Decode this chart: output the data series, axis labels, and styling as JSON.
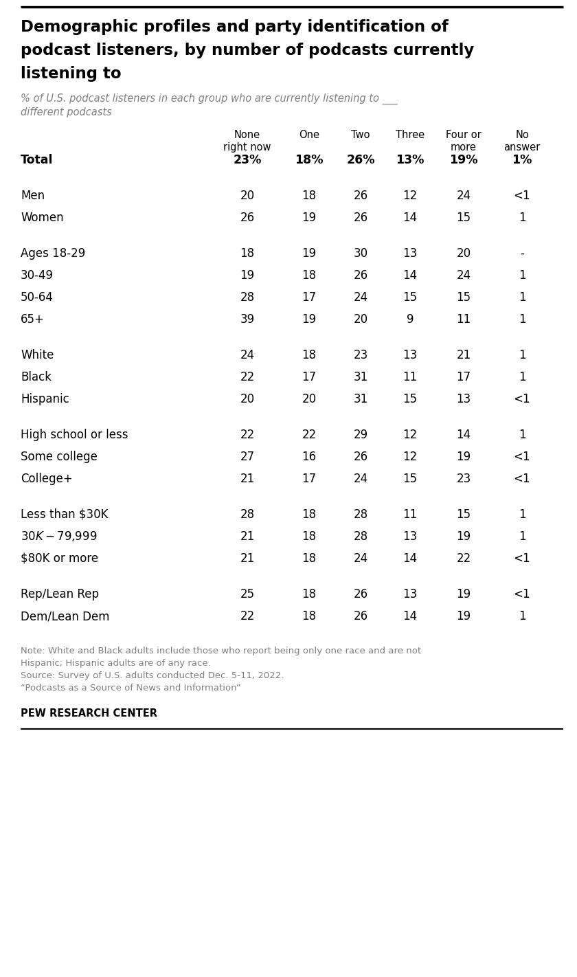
{
  "title_line1": "Demographic profiles and party identification of",
  "title_line2": "podcast listeners, by number of podcasts currently",
  "title_line3": "listening to",
  "subtitle_line1": "% of U.S. podcast listeners in each group who are currently listening to ___",
  "subtitle_line2": "different podcasts",
  "col_headers": [
    "None\nright now",
    "One",
    "Two",
    "Three",
    "Four or\nmore",
    "No\nanswer"
  ],
  "rows": [
    {
      "label": "Total",
      "values": [
        "23%",
        "18%",
        "26%",
        "13%",
        "19%",
        "1%"
      ],
      "bold": true,
      "spacer": false
    },
    {
      "label": "",
      "values": [
        "",
        "",
        "",
        "",
        "",
        ""
      ],
      "bold": false,
      "spacer": true
    },
    {
      "label": "Men",
      "values": [
        "20",
        "18",
        "26",
        "12",
        "24",
        "<1"
      ],
      "bold": false,
      "spacer": false
    },
    {
      "label": "Women",
      "values": [
        "26",
        "19",
        "26",
        "14",
        "15",
        "1"
      ],
      "bold": false,
      "spacer": false
    },
    {
      "label": "",
      "values": [
        "",
        "",
        "",
        "",
        "",
        ""
      ],
      "bold": false,
      "spacer": true
    },
    {
      "label": "Ages 18-29",
      "values": [
        "18",
        "19",
        "30",
        "13",
        "20",
        "-"
      ],
      "bold": false,
      "spacer": false
    },
    {
      "label": "30-49",
      "values": [
        "19",
        "18",
        "26",
        "14",
        "24",
        "1"
      ],
      "bold": false,
      "spacer": false
    },
    {
      "label": "50-64",
      "values": [
        "28",
        "17",
        "24",
        "15",
        "15",
        "1"
      ],
      "bold": false,
      "spacer": false
    },
    {
      "label": "65+",
      "values": [
        "39",
        "19",
        "20",
        "9",
        "11",
        "1"
      ],
      "bold": false,
      "spacer": false
    },
    {
      "label": "",
      "values": [
        "",
        "",
        "",
        "",
        "",
        ""
      ],
      "bold": false,
      "spacer": true
    },
    {
      "label": "White",
      "values": [
        "24",
        "18",
        "23",
        "13",
        "21",
        "1"
      ],
      "bold": false,
      "spacer": false
    },
    {
      "label": "Black",
      "values": [
        "22",
        "17",
        "31",
        "11",
        "17",
        "1"
      ],
      "bold": false,
      "spacer": false
    },
    {
      "label": "Hispanic",
      "values": [
        "20",
        "20",
        "31",
        "15",
        "13",
        "<1"
      ],
      "bold": false,
      "spacer": false
    },
    {
      "label": "",
      "values": [
        "",
        "",
        "",
        "",
        "",
        ""
      ],
      "bold": false,
      "spacer": true
    },
    {
      "label": "High school or less",
      "values": [
        "22",
        "22",
        "29",
        "12",
        "14",
        "1"
      ],
      "bold": false,
      "spacer": false
    },
    {
      "label": "Some college",
      "values": [
        "27",
        "16",
        "26",
        "12",
        "19",
        "<1"
      ],
      "bold": false,
      "spacer": false
    },
    {
      "label": "College+",
      "values": [
        "21",
        "17",
        "24",
        "15",
        "23",
        "<1"
      ],
      "bold": false,
      "spacer": false
    },
    {
      "label": "",
      "values": [
        "",
        "",
        "",
        "",
        "",
        ""
      ],
      "bold": false,
      "spacer": true
    },
    {
      "label": "Less than $30K",
      "values": [
        "28",
        "18",
        "28",
        "11",
        "15",
        "1"
      ],
      "bold": false,
      "spacer": false
    },
    {
      "label": "$30K-$79,999",
      "values": [
        "21",
        "18",
        "28",
        "13",
        "19",
        "1"
      ],
      "bold": false,
      "spacer": false
    },
    {
      "label": "$80K or more",
      "values": [
        "21",
        "18",
        "24",
        "14",
        "22",
        "<1"
      ],
      "bold": false,
      "spacer": false
    },
    {
      "label": "",
      "values": [
        "",
        "",
        "",
        "",
        "",
        ""
      ],
      "bold": false,
      "spacer": true
    },
    {
      "label": "Rep/Lean Rep",
      "values": [
        "25",
        "18",
        "26",
        "13",
        "19",
        "<1"
      ],
      "bold": false,
      "spacer": false
    },
    {
      "label": "Dem/Lean Dem",
      "values": [
        "22",
        "18",
        "26",
        "14",
        "19",
        "1"
      ],
      "bold": false,
      "spacer": false
    }
  ],
  "note_lines": [
    "Note: White and Black adults include those who report being only one race and are not",
    "Hispanic; Hispanic adults are of any race.",
    "Source: Survey of U.S. adults conducted Dec. 5-11, 2022.",
    "“Podcasts as a Source of News and Information”"
  ],
  "footer": "PEW RESEARCH CENTER",
  "bg_color": "#ffffff",
  "text_color": "#000000",
  "subtitle_color": "#808080",
  "note_color": "#808080",
  "top_border_color": "#000000",
  "bottom_border_color": "#000000"
}
